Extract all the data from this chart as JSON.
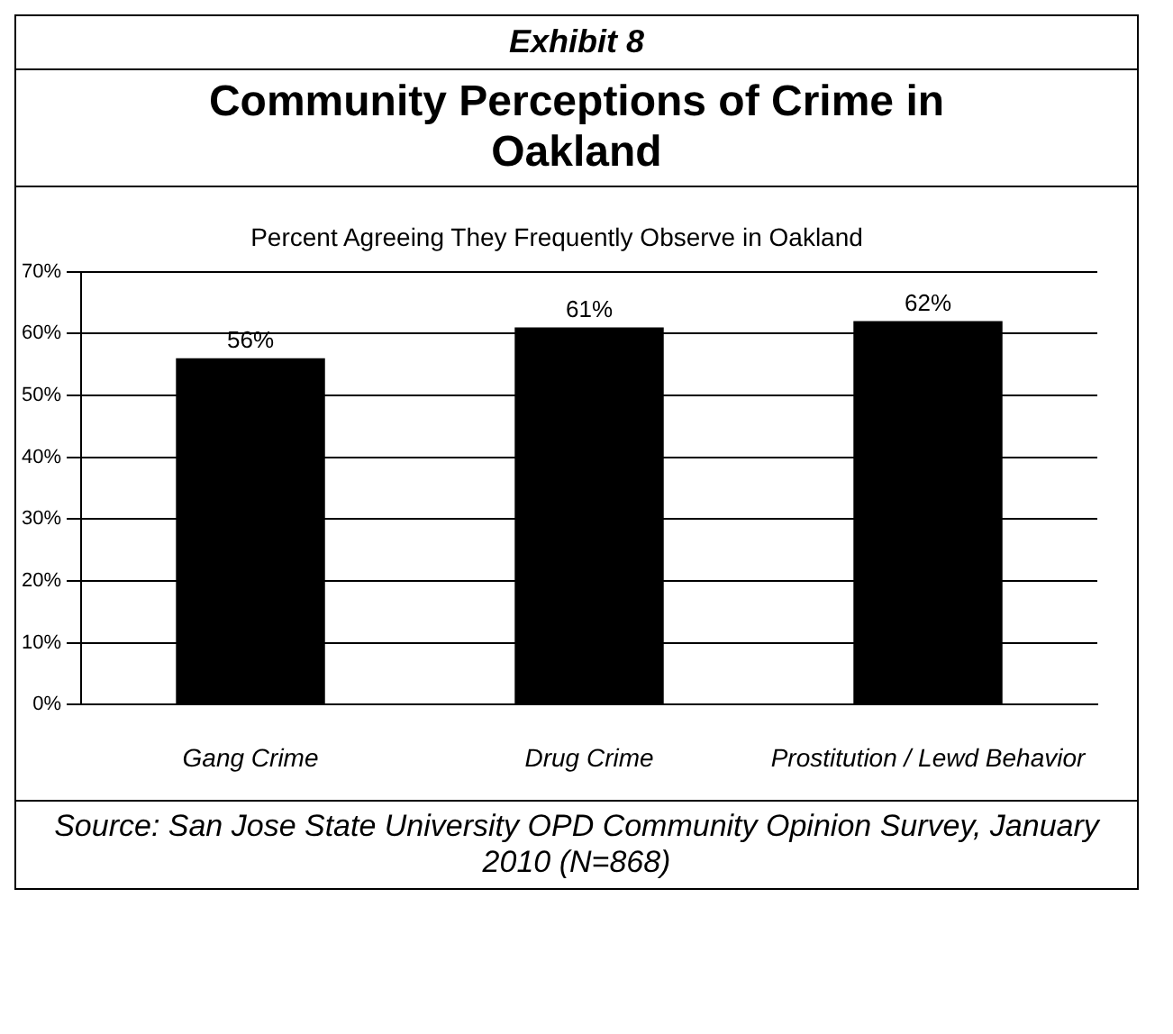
{
  "chart_data": {
    "type": "bar",
    "title": "Community Perceptions of Crime in Oakland",
    "subtitle": "Percent Agreeing They Frequently Observe in Oakland",
    "categories": [
      "Gang Crime",
      "Drug Crime",
      "Prostitution / Lewd Behavior"
    ],
    "values": [
      56,
      61,
      62
    ],
    "color": "#000000",
    "value_labels": [
      "56%",
      "61%",
      "62%"
    ],
    "ylim": [
      0,
      70
    ],
    "yticks": [
      {
        "value": 0,
        "label": "0%"
      },
      {
        "value": 10,
        "label": "10%"
      },
      {
        "value": 20,
        "label": "20%"
      },
      {
        "value": 30,
        "label": "30%"
      },
      {
        "value": 40,
        "label": "40%"
      },
      {
        "value": 50,
        "label": "50%"
      },
      {
        "value": 60,
        "label": "60%"
      },
      {
        "value": 70,
        "label": "70%"
      }
    ],
    "grid": "y",
    "legend": false,
    "annotations": [
      "Exhibit 8",
      "Source: San Jose State University OPD Community Opinion Survey, January 2010 (N=868)"
    ]
  }
}
